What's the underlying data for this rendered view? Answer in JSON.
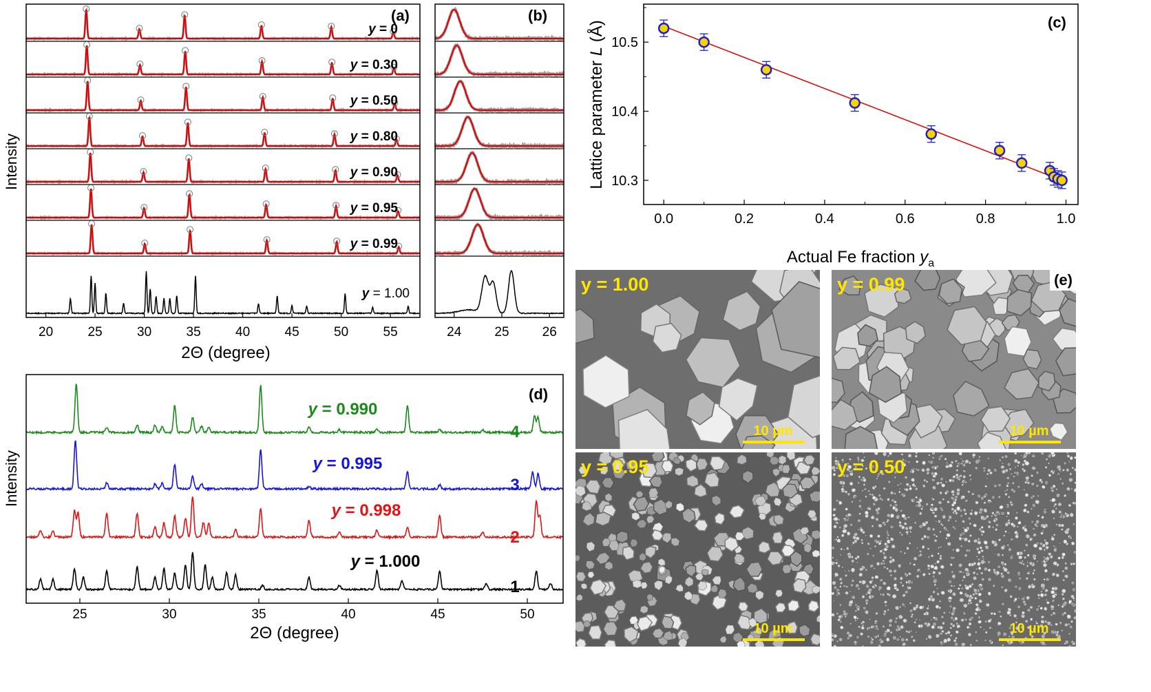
{
  "panel_a": {
    "label": "(a)",
    "ylabel": "Intensity",
    "xlabel": "2Θ (degree)",
    "xticks": [
      "20",
      "25",
      "30",
      "35",
      "40",
      "45",
      "50",
      "55"
    ],
    "xlim": [
      18,
      58
    ],
    "peaks": [
      24.1,
      29.5,
      34.1,
      41.9,
      49.0,
      55.3
    ],
    "shift_per_step": [
      0,
      0.06,
      0.14,
      0.32,
      0.42,
      0.48,
      0.55
    ],
    "traces": [
      {
        "label": "y = 0"
      },
      {
        "label": "y = 0.30"
      },
      {
        "label": "y = 0.50"
      },
      {
        "label": "y = 0.80"
      },
      {
        "label": "y = 0.90"
      },
      {
        "label": "y = 0.95"
      },
      {
        "label": "y = 0.99"
      }
    ],
    "bottom_label": "y = 1.00",
    "bottom_peaks": [
      [
        22.5,
        0.3
      ],
      [
        24.6,
        0.75
      ],
      [
        25.0,
        0.6
      ],
      [
        26.1,
        0.4
      ],
      [
        27.9,
        0.2
      ],
      [
        30.2,
        0.85
      ],
      [
        30.6,
        0.5
      ],
      [
        31.2,
        0.35
      ],
      [
        32.0,
        0.3
      ],
      [
        32.6,
        0.3
      ],
      [
        33.3,
        0.35
      ],
      [
        35.2,
        0.75
      ],
      [
        41.6,
        0.2
      ],
      [
        43.5,
        0.35
      ],
      [
        45.0,
        0.15
      ],
      [
        46.5,
        0.15
      ],
      [
        50.4,
        0.4
      ],
      [
        53.2,
        0.12
      ],
      [
        56.8,
        0.15
      ]
    ]
  },
  "panel_b": {
    "label": "(b)",
    "xticks": [
      "24",
      "25",
      "26"
    ],
    "xlim": [
      23.6,
      26.3
    ]
  },
  "panel_c": {
    "label": "(c)",
    "ylabel": "Lattice parameter L (Å)",
    "ylabel_main": "Lattice parameter ",
    "ylabel_var": "L",
    "ylabel_unit": " (Å)",
    "xlabel_main": "Actual Fe fraction ",
    "xlabel_var": "y",
    "xlabel_sub": "a",
    "xticks": [
      "0.0",
      "0.2",
      "0.4",
      "0.6",
      "0.8",
      "1.0"
    ],
    "yticks": [
      "10.3",
      "10.4",
      "10.5"
    ]
  },
  "chart_data": {
    "type": "scatter",
    "x": [
      0.0,
      0.1,
      0.255,
      0.475,
      0.665,
      0.835,
      0.89,
      0.96,
      0.97,
      0.98,
      0.99
    ],
    "y": [
      10.52,
      10.5,
      10.46,
      10.412,
      10.367,
      10.343,
      10.325,
      10.314,
      10.305,
      10.302,
      10.3
    ],
    "error": 0.012,
    "fit_line": {
      "x": [
        0.0,
        0.99
      ],
      "y": [
        10.523,
        10.3
      ]
    },
    "xlim": [
      -0.05,
      1.03
    ],
    "ylim": [
      10.265,
      10.555
    ],
    "xlabel": "Actual Fe fraction ya",
    "ylabel": "Lattice parameter L (Å)",
    "colors": {
      "marker_edge": "#1f1fcc",
      "marker_fill": "#f5d200",
      "fit": "#e00000"
    }
  },
  "panel_d": {
    "label": "(d)",
    "ylabel": "Intensity",
    "xlabel": "2Θ (degree)",
    "xticks": [
      "25",
      "30",
      "35",
      "40",
      "45",
      "50"
    ],
    "xlim": [
      22,
      52
    ],
    "traces": [
      {
        "label": "y = 0.990",
        "number": "4",
        "color": "#1a8a1a"
      },
      {
        "label": "y = 0.995",
        "number": "3",
        "color": "#1414e0"
      },
      {
        "label": "y = 0.998",
        "number": "2",
        "color": "#e01414"
      },
      {
        "label": "y = 1.000",
        "number": "1",
        "color": "#000000"
      }
    ]
  },
  "panel_e": {
    "label": "(e)",
    "images": [
      {
        "label": "y = 1.00",
        "scalebar": "10 µm"
      },
      {
        "label": "y = 0.99",
        "scalebar": "10 µm"
      },
      {
        "label": "y = 0.95",
        "scalebar": "10 µm"
      },
      {
        "label": "y = 0.50",
        "scalebar": "10 µm"
      }
    ]
  }
}
